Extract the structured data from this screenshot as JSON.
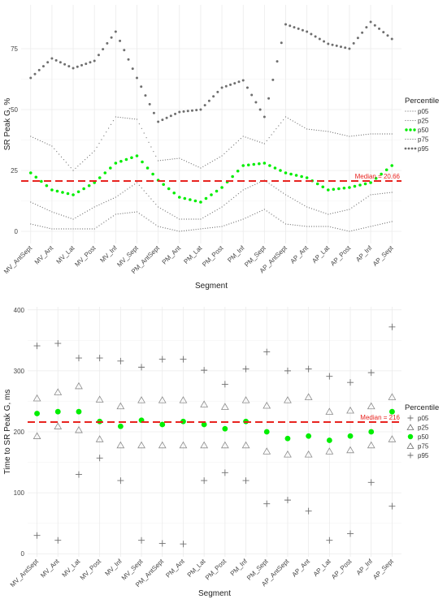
{
  "colors": {
    "dark": "#6f6f6f",
    "green": "#00ee00",
    "median": "#e8231f",
    "grid": "#ebebeb"
  },
  "chart_data": [
    {
      "type": "line",
      "ylabel": "SR Peak G, %",
      "xlabel": "Segment",
      "ylim": [
        -5,
        93
      ],
      "yticks": [
        0,
        25,
        50,
        75
      ],
      "grid": true,
      "legend_title": "Percentile",
      "legend_position": "right",
      "median": {
        "value": 20.66,
        "label": "Median = 20.66"
      },
      "categories": [
        "MV_AntSept",
        "MV_Ant",
        "MV_Lat",
        "MV_Post",
        "MV_Inf",
        "MV_Sept",
        "PM_AntSept",
        "PM_Ant",
        "PM_Lat",
        "PM_Post",
        "PM_Inf",
        "PM_Sept",
        "AP_AntSept",
        "AP_Ant",
        "AP_Lat",
        "AP_Post",
        "AP_Inf",
        "AP_Sept"
      ],
      "series": [
        {
          "name": "p05",
          "style": "dotted-dark-fine",
          "values": [
            3,
            1,
            1,
            1,
            7,
            8,
            2,
            0,
            1,
            2,
            5,
            9,
            3,
            2,
            2,
            0,
            2,
            4
          ]
        },
        {
          "name": "p25",
          "style": "dotted-dark-fine",
          "values": [
            12,
            8,
            5,
            10,
            14,
            20,
            10,
            5,
            5,
            10,
            17,
            21,
            15,
            10,
            7,
            9,
            15,
            16
          ]
        },
        {
          "name": "p50",
          "style": "dotted-green",
          "values": [
            24,
            17,
            15,
            20,
            28,
            31,
            21,
            14,
            12,
            18,
            27,
            28,
            24,
            22,
            17,
            18,
            20,
            27
          ]
        },
        {
          "name": "p75",
          "style": "dotted-dark-fine",
          "values": [
            39,
            35,
            25,
            33,
            47,
            46,
            29,
            30,
            26,
            31,
            39,
            36,
            47,
            42,
            41,
            39,
            40,
            40
          ]
        },
        {
          "name": "p95",
          "style": "dotted-dark-bold",
          "values": [
            63,
            71,
            67,
            70,
            82,
            63,
            45,
            49,
            50,
            59,
            62,
            47,
            85,
            82,
            77,
            75,
            86,
            79
          ]
        }
      ]
    },
    {
      "type": "scatter",
      "ylabel": "Time to SR Peak G, ms",
      "xlabel": "Segment",
      "ylim": [
        -5,
        405
      ],
      "yticks": [
        0,
        100,
        200,
        300,
        400
      ],
      "grid": true,
      "legend_title": "Percentile",
      "legend_position": "right",
      "median": {
        "value": 216,
        "label": "Median = 216"
      },
      "categories": [
        "MV_AntSept",
        "MV_Ant",
        "MV_Lat",
        "MV_Post",
        "MV_Inf",
        "MV_Sept",
        "PM_AntSept",
        "PM_Ant",
        "PM_Lat",
        "PM_Post",
        "PM_Inf",
        "PM_Sept",
        "AP_AntSept",
        "AP_Ant",
        "AP_Lat",
        "AP_Post",
        "AP_Inf",
        "AP_Sept"
      ],
      "series": [
        {
          "name": "p05",
          "marker": "plus",
          "values": [
            30,
            22,
            130,
            157,
            120,
            22,
            17,
            16,
            120,
            133,
            120,
            82,
            88,
            70,
            22,
            33,
            117,
            78
          ]
        },
        {
          "name": "p25",
          "marker": "triangle",
          "values": [
            193,
            209,
            203,
            188,
            178,
            178,
            178,
            178,
            178,
            178,
            178,
            168,
            163,
            163,
            168,
            170,
            178,
            188
          ]
        },
        {
          "name": "p50",
          "marker": "dot",
          "values": [
            230,
            233,
            233,
            217,
            209,
            219,
            212,
            217,
            212,
            205,
            217,
            200,
            189,
            193,
            186,
            193,
            200,
            233
          ]
        },
        {
          "name": "p75",
          "marker": "triangle",
          "values": [
            255,
            265,
            275,
            253,
            242,
            252,
            252,
            252,
            245,
            241,
            252,
            243,
            252,
            257,
            233,
            235,
            242,
            257
          ]
        },
        {
          "name": "p95",
          "marker": "plus",
          "values": [
            341,
            345,
            321,
            321,
            316,
            306,
            319,
            319,
            301,
            278,
            303,
            331,
            300,
            303,
            291,
            281,
            297,
            372
          ]
        }
      ]
    }
  ]
}
